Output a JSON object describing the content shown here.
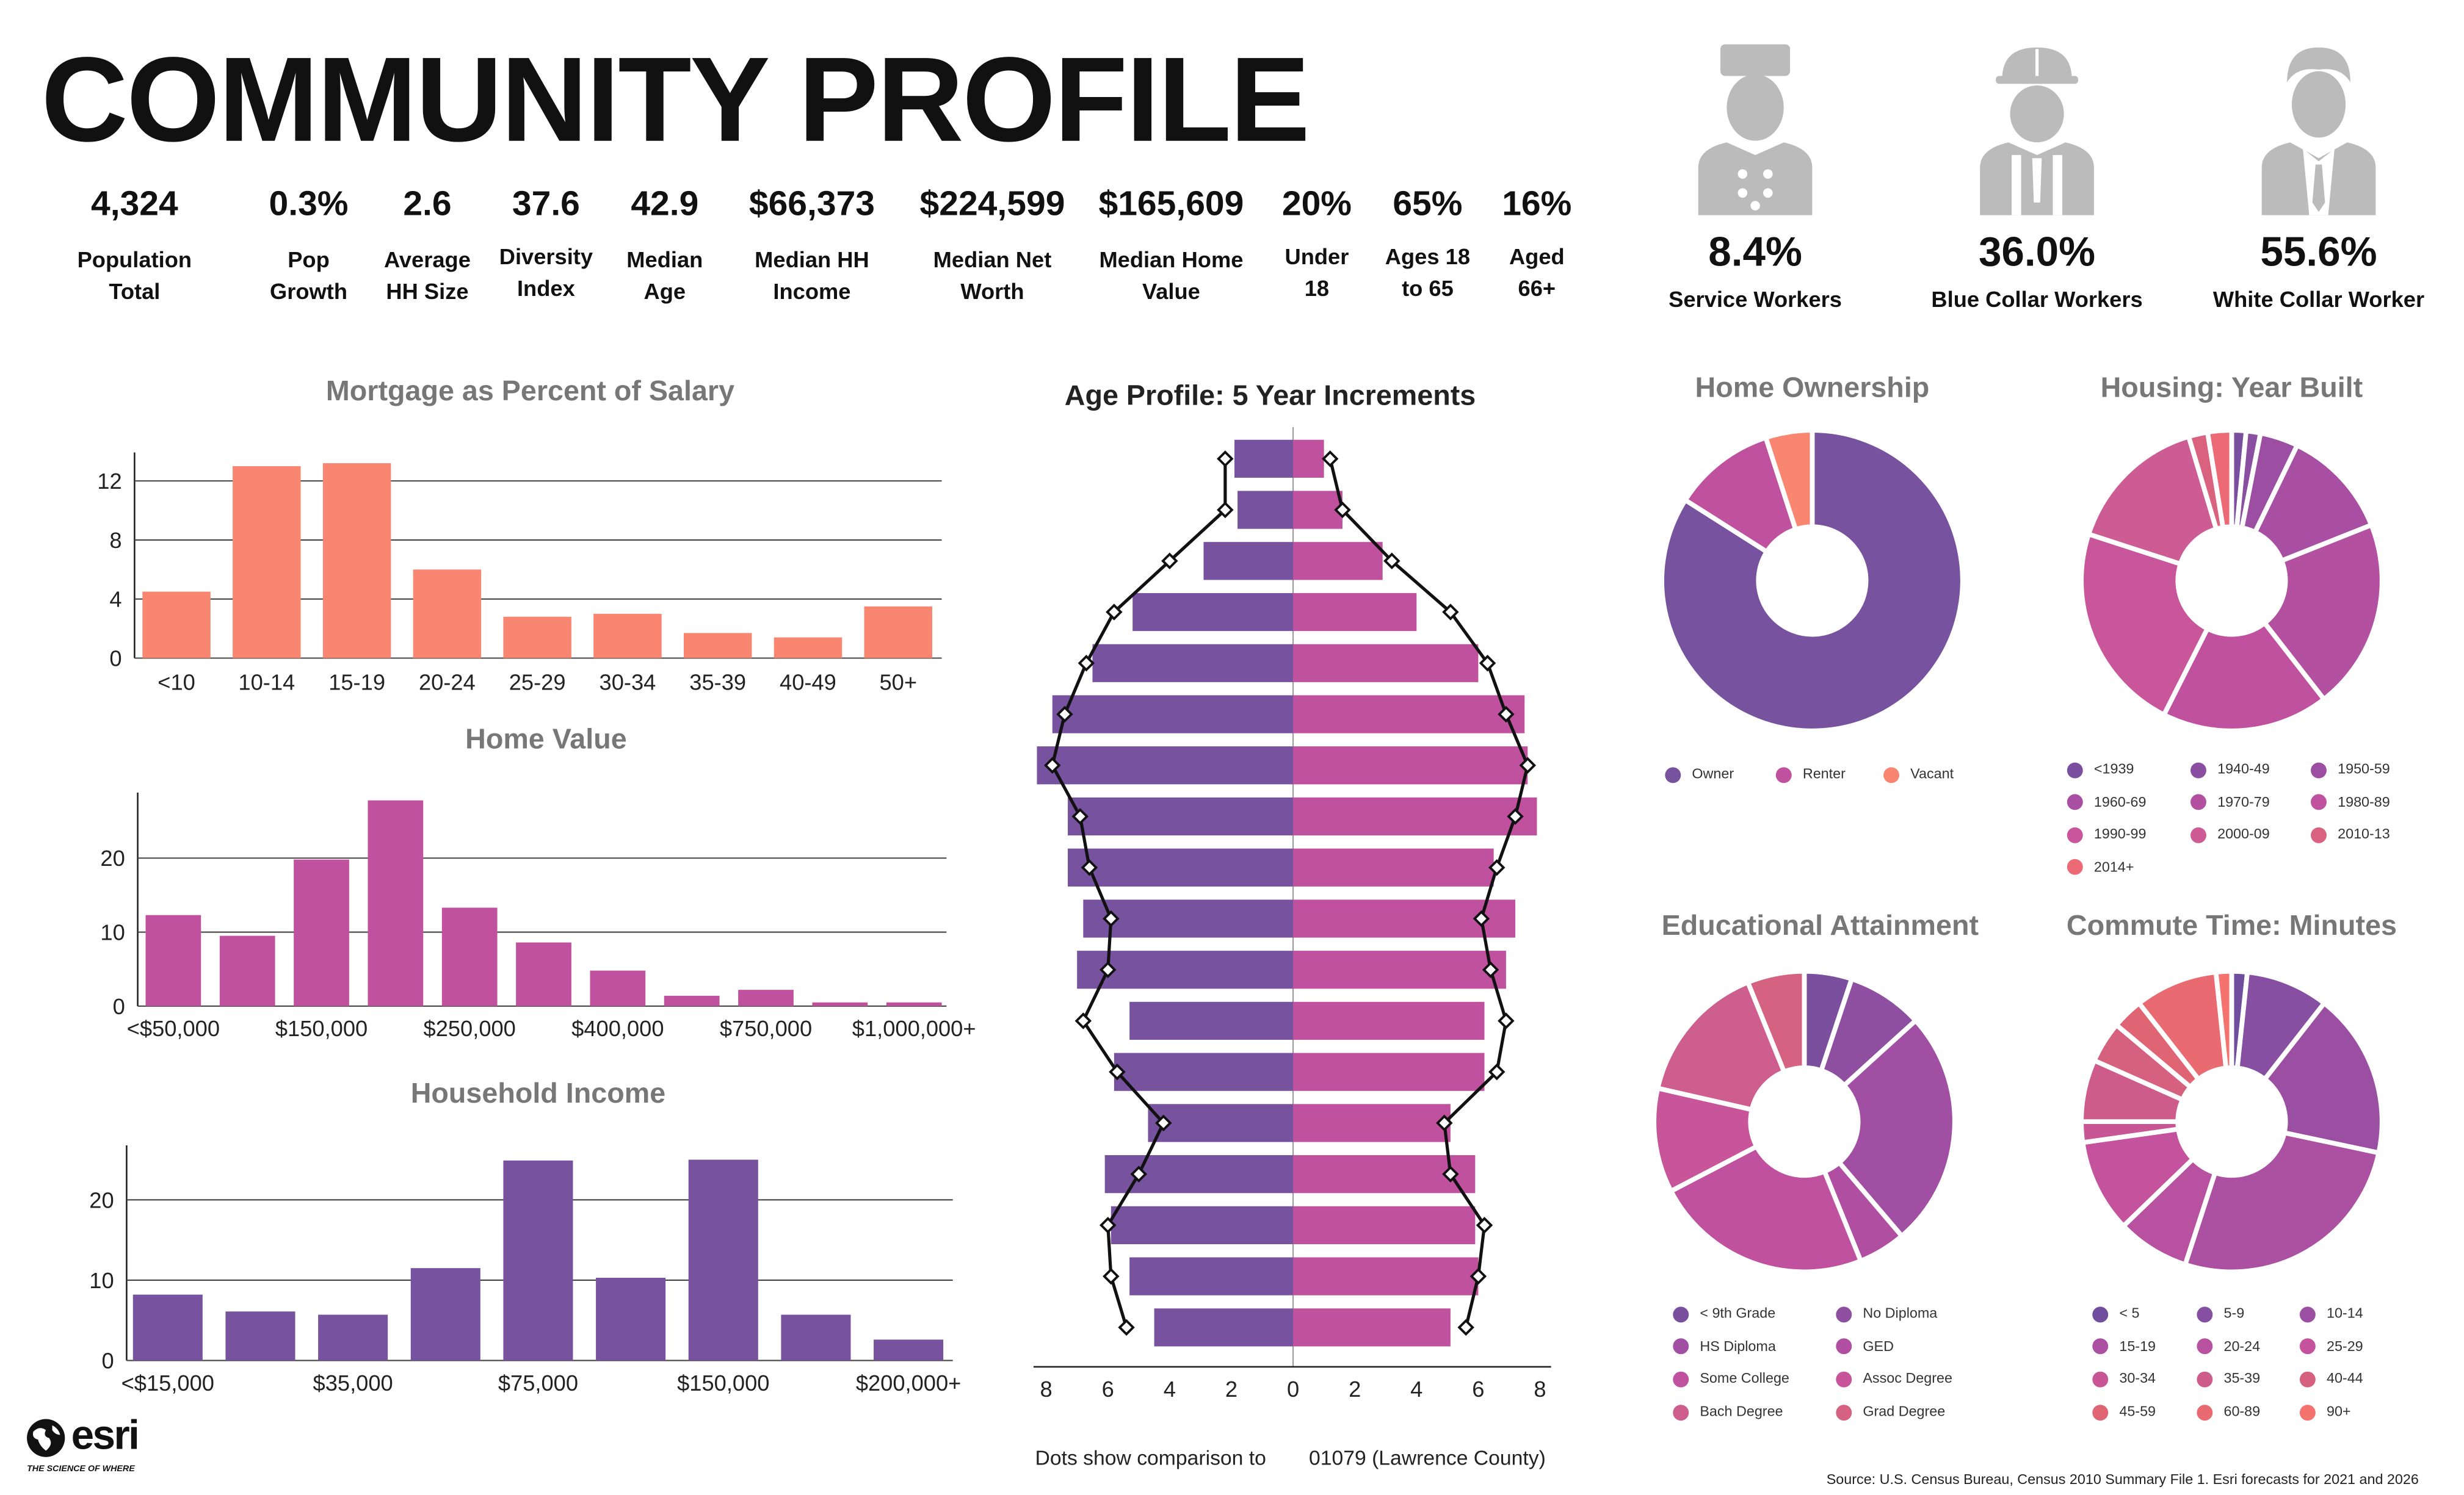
{
  "title": "COMMUNITY PROFILE",
  "stats": [
    {
      "value": "4,324",
      "label": [
        "Population",
        "Total"
      ]
    },
    {
      "value": "0.3%",
      "label": [
        "Pop",
        "Growth"
      ]
    },
    {
      "value": "2.6",
      "label": [
        "Average",
        "HH Size"
      ]
    },
    {
      "value": "37.6",
      "label": [
        "Diversity",
        "Index"
      ]
    },
    {
      "value": "42.9",
      "label": [
        "Median",
        "Age"
      ]
    },
    {
      "value": "$66,373",
      "label": [
        "Median HH",
        "Income"
      ]
    },
    {
      "value": "$224,599",
      "label": [
        "Median Net",
        "Worth"
      ]
    },
    {
      "value": "$165,609",
      "label": [
        "Median Home",
        "Value"
      ]
    },
    {
      "value": "20%",
      "label": [
        "Under",
        "18"
      ]
    },
    {
      "value": "65%",
      "label": [
        "Ages 18",
        "to 65"
      ]
    },
    {
      "value": "16%",
      "label": [
        "Aged",
        "66+"
      ]
    }
  ],
  "workers": [
    {
      "value": "8.4%",
      "label": "Service Workers",
      "icon": "service-worker-icon"
    },
    {
      "value": "36.0%",
      "label": "Blue Collar Workers",
      "icon": "hardhat-worker-icon"
    },
    {
      "value": "55.6%",
      "label": "White Collar Worker",
      "icon": "businessman-icon"
    }
  ],
  "colors": {
    "salmon": "#F98670",
    "magenta": "#C0519E",
    "purple": "#77529F",
    "grey": "#BBBBBB"
  },
  "chart_data": [
    {
      "id": "mortgage",
      "type": "bar",
      "title": "Mortgage as Percent of Salary",
      "categories": [
        "<10",
        "10-14",
        "15-19",
        "20-24",
        "25-29",
        "30-34",
        "35-39",
        "40-49",
        "50+"
      ],
      "values": [
        4.5,
        13,
        13.2,
        6,
        2.8,
        3,
        1.7,
        1.4,
        3.5
      ],
      "yticks": [
        0,
        4,
        8,
        12
      ],
      "ylim": [
        0,
        13.5
      ],
      "color": "#F98670"
    },
    {
      "id": "homevalue",
      "type": "bar",
      "title": "Home Value",
      "categories": [
        "<$50,000",
        "",
        "$150,000",
        "",
        "$250,000",
        "",
        "$400,000",
        "",
        "$750,000",
        "",
        "$1,000,000+"
      ],
      "values": [
        12.3,
        9.5,
        19.8,
        27.8,
        13.3,
        8.6,
        4.8,
        1.4,
        2.2,
        0.5,
        0.5
      ],
      "yticks": [
        0,
        10,
        20
      ],
      "ylim": [
        0,
        28
      ],
      "color": "#C0519E"
    },
    {
      "id": "income",
      "type": "bar",
      "title": "Household Income",
      "categories": [
        "<$15,000",
        "",
        "$35,000",
        "",
        "$75,000",
        "",
        "$150,000",
        "",
        "$200,000+"
      ],
      "values": [
        8.2,
        6.1,
        5.7,
        11.5,
        24.9,
        10.3,
        25,
        5.7,
        2.6
      ],
      "yticks": [
        0,
        10,
        20
      ],
      "ylim": [
        0,
        26
      ],
      "color": "#77529F"
    },
    {
      "id": "age",
      "type": "pyramid",
      "title": "Age Profile: 5 Year Increments",
      "male": [
        1.9,
        1.8,
        2.9,
        5.2,
        6.5,
        7.8,
        8.3,
        7.3,
        7.3,
        6.8,
        7.0,
        5.3,
        5.8,
        4.7,
        6.1,
        5.9,
        5.3,
        4.5
      ],
      "female": [
        1.0,
        1.6,
        2.9,
        4.0,
        6.0,
        7.5,
        7.6,
        7.9,
        6.5,
        7.2,
        6.9,
        6.2,
        6.2,
        5.1,
        5.9,
        5.9,
        6.0,
        5.1
      ],
      "compare_male": [
        2.2,
        2.2,
        4.0,
        5.8,
        6.7,
        7.4,
        7.8,
        6.9,
        6.6,
        5.9,
        6.0,
        6.8,
        5.7,
        4.2,
        5.0,
        6.0,
        5.9,
        5.4
      ],
      "compare_female": [
        1.2,
        1.6,
        3.2,
        5.1,
        6.3,
        6.9,
        7.6,
        7.2,
        6.6,
        6.1,
        6.4,
        6.9,
        6.6,
        4.9,
        5.1,
        6.2,
        6.0,
        5.6
      ],
      "xticks": [
        "8",
        "6",
        "4",
        "2",
        "0",
        "2",
        "4",
        "6",
        "8"
      ]
    },
    {
      "id": "ownership",
      "type": "pie",
      "title": "Home Ownership",
      "labels": [
        "Owner",
        "Renter",
        "Vacant"
      ],
      "values": [
        84,
        11,
        5
      ],
      "colors": [
        "#77529F",
        "#C0519E",
        "#F98670"
      ]
    },
    {
      "id": "yearbuilt",
      "type": "pie",
      "title": "Housing: Year Built",
      "labels": [
        "<1939",
        "1940-49",
        "1950-59",
        "1960-69",
        "1970-79",
        "1980-89",
        "1990-99",
        "2000-09",
        "2010-13",
        "2014+"
      ],
      "values": [
        1.5,
        1.5,
        4,
        11.5,
        20,
        17.5,
        22,
        15,
        2,
        2.5
      ],
      "colors": [
        "#7B4FA0",
        "#8A4FA0",
        "#9C4FA2",
        "#A84FA3",
        "#B3509F",
        "#C0519E",
        "#C9569A",
        "#CE5C94",
        "#D9637E",
        "#EB6A76"
      ]
    },
    {
      "id": "education",
      "type": "pie",
      "title": "Educational Attainment",
      "labels": [
        "< 9th Grade",
        "No Diploma",
        "HS Diploma",
        "GED",
        "Some College",
        "Assoc Degree",
        "Bach Degree",
        "Grad Degree"
      ],
      "values": [
        5,
        8,
        25,
        5,
        23,
        11,
        15,
        6
      ],
      "colors": [
        "#7A4F9E",
        "#8E4FA0",
        "#A04FA2",
        "#B04FA1",
        "#BF519E",
        "#C8559A",
        "#CD5E8E",
        "#D46280"
      ]
    },
    {
      "id": "commute",
      "type": "pie",
      "title": "Commute Time: Minutes",
      "labels": [
        "< 5",
        "5-9",
        "10-14",
        "15-19",
        "20-24",
        "25-29",
        "30-34",
        "35-39",
        "40-44",
        "45-59",
        "60-89",
        "90+"
      ],
      "values": [
        1.5,
        8,
        16,
        24,
        7,
        9,
        2,
        6,
        4,
        3,
        8,
        1.5
      ],
      "colors": [
        "#6F4E9E",
        "#874FA1",
        "#9B4FA2",
        "#AC50A1",
        "#B8519F",
        "#C4529C",
        "#C95694",
        "#CE5C8B",
        "#D5617F",
        "#DF6575",
        "#EA6A72",
        "#F5736E"
      ]
    }
  ],
  "age_note": "Dots show comparison to",
  "age_note_area": "01079 (Lawrence County)",
  "source": "Source: U.S. Census Bureau, Census 2010 Summary File 1. Esri forecasts for 2021 and 2026",
  "logo": {
    "name": "esri",
    "tagline": "THE SCIENCE OF WHERE"
  }
}
